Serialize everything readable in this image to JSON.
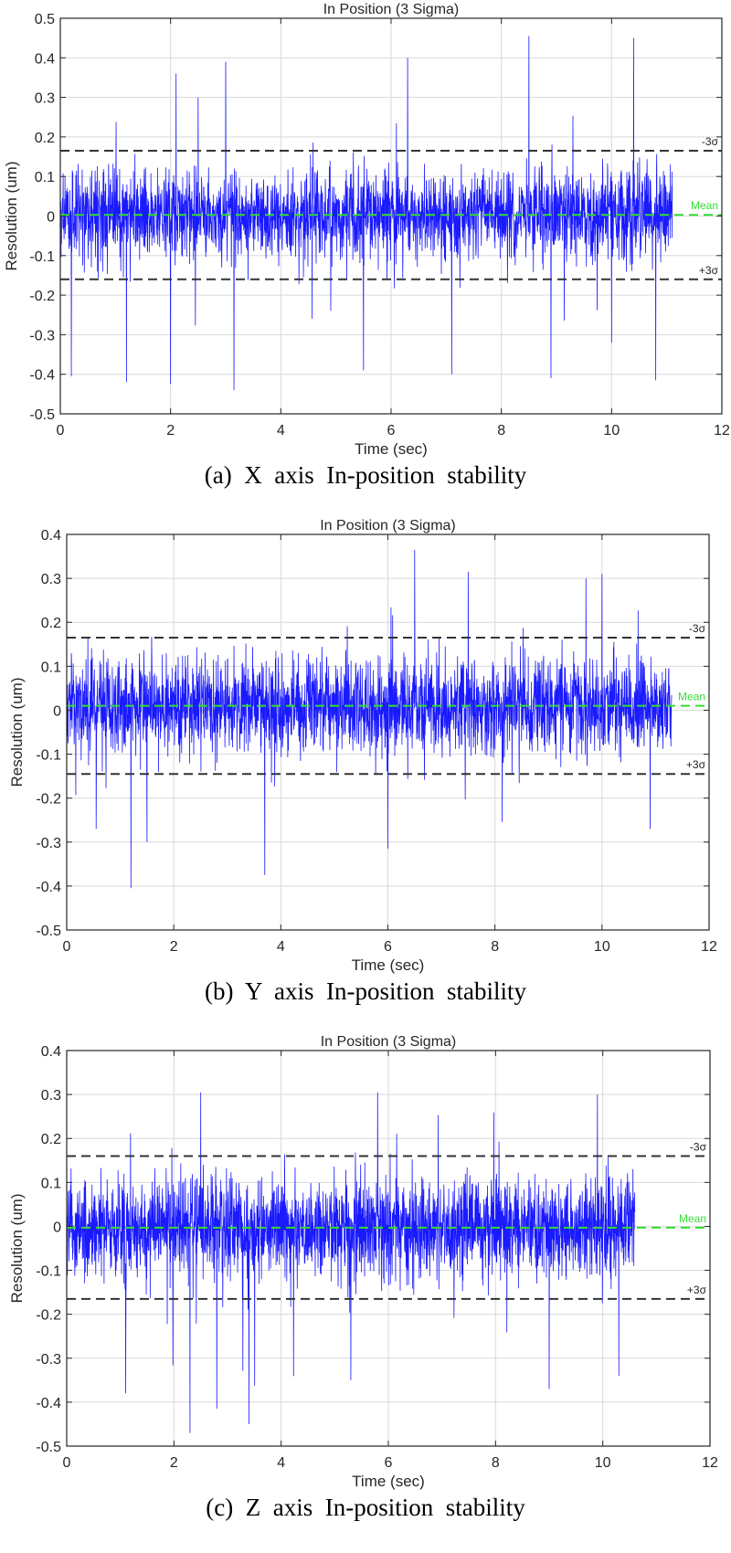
{
  "figure": {
    "colors": {
      "signal": "#1a1aff",
      "mean": "#33dd33",
      "sigma": "#333333",
      "grid": "#d9d9d9",
      "axis": "#262626"
    }
  },
  "chart_data": [
    {
      "type": "line",
      "title": "In Position (3 Sigma)",
      "xlabel": "Time (sec)",
      "ylabel": "Resolution (um)",
      "caption": "(a)  X  axis  In-position  stability",
      "xlim": [
        0,
        12
      ],
      "ylim": [
        -0.5,
        0.5
      ],
      "xticks": [
        0,
        2,
        4,
        6,
        8,
        10,
        12
      ],
      "yticks": [
        -0.5,
        -0.4,
        -0.3,
        -0.2,
        -0.1,
        0,
        0.1,
        0.2,
        0.3,
        0.4,
        0.5
      ],
      "grid": true,
      "signal_end": 11.1,
      "noise_sigma": 0.055,
      "reference_lines": [
        {
          "label": "-3σ",
          "y": 0.165,
          "style": "dashed"
        },
        {
          "label": "Mean",
          "y": 0.003,
          "style": "dashed"
        },
        {
          "label": "+3σ",
          "y": -0.16,
          "style": "dashed"
        }
      ],
      "peaks": [
        {
          "x": 0.2,
          "y": -0.405
        },
        {
          "x": 1.2,
          "y": -0.42
        },
        {
          "x": 2.0,
          "y": -0.425
        },
        {
          "x": 2.1,
          "y": 0.36
        },
        {
          "x": 2.5,
          "y": 0.3
        },
        {
          "x": 3.0,
          "y": 0.39
        },
        {
          "x": 3.15,
          "y": -0.44
        },
        {
          "x": 5.5,
          "y": -0.39
        },
        {
          "x": 6.3,
          "y": 0.4
        },
        {
          "x": 7.1,
          "y": -0.4
        },
        {
          "x": 8.5,
          "y": 0.455
        },
        {
          "x": 8.9,
          "y": -0.41
        },
        {
          "x": 10.0,
          "y": -0.32
        },
        {
          "x": 10.4,
          "y": 0.45
        },
        {
          "x": 10.8,
          "y": -0.415
        }
      ]
    },
    {
      "type": "line",
      "title": "In Position (3 Sigma)",
      "xlabel": "Time (sec)",
      "ylabel": "Resolution (um)",
      "caption": "(b)  Y  axis  In-position  stability",
      "xlim": [
        0,
        12
      ],
      "ylim": [
        -0.5,
        0.4
      ],
      "xticks": [
        0,
        2,
        4,
        6,
        8,
        10,
        12
      ],
      "yticks": [
        -0.5,
        -0.4,
        -0.3,
        -0.2,
        -0.1,
        0,
        0.1,
        0.2,
        0.3,
        0.4
      ],
      "grid": true,
      "signal_end": 11.3,
      "noise_sigma": 0.052,
      "reference_lines": [
        {
          "label": "-3σ",
          "y": 0.165,
          "style": "dashed"
        },
        {
          "label": "Mean",
          "y": 0.01,
          "style": "dashed"
        },
        {
          "label": "+3σ",
          "y": -0.145,
          "style": "dashed"
        }
      ],
      "peaks": [
        {
          "x": 0.55,
          "y": -0.27
        },
        {
          "x": 1.2,
          "y": -0.405
        },
        {
          "x": 1.5,
          "y": -0.3
        },
        {
          "x": 3.7,
          "y": -0.375
        },
        {
          "x": 6.0,
          "y": -0.315
        },
        {
          "x": 6.5,
          "y": 0.365
        },
        {
          "x": 7.5,
          "y": 0.315
        },
        {
          "x": 9.7,
          "y": 0.3
        },
        {
          "x": 10.0,
          "y": 0.31
        },
        {
          "x": 10.9,
          "y": -0.27
        }
      ]
    },
    {
      "type": "line",
      "title": "In Position (3 Sigma)",
      "xlabel": "Time (sec)",
      "ylabel": "Resolution (um)",
      "caption": "(c)  Z  axis  In-position  stability",
      "xlim": [
        0,
        12
      ],
      "ylim": [
        -0.5,
        0.4
      ],
      "xticks": [
        0,
        2,
        4,
        6,
        8,
        10,
        12
      ],
      "yticks": [
        -0.5,
        -0.4,
        -0.3,
        -0.2,
        -0.1,
        0,
        0.1,
        0.2,
        0.3,
        0.4
      ],
      "grid": true,
      "signal_end": 10.6,
      "noise_sigma": 0.055,
      "reference_lines": [
        {
          "label": "-3σ",
          "y": 0.16,
          "style": "dashed"
        },
        {
          "label": "Mean",
          "y": -0.003,
          "style": "dashed"
        },
        {
          "label": "+3σ",
          "y": -0.165,
          "style": "dashed"
        }
      ],
      "peaks": [
        {
          "x": 1.1,
          "y": -0.38
        },
        {
          "x": 2.3,
          "y": -0.47
        },
        {
          "x": 2.5,
          "y": 0.305
        },
        {
          "x": 2.8,
          "y": -0.415
        },
        {
          "x": 3.4,
          "y": -0.45
        },
        {
          "x": 5.3,
          "y": -0.35
        },
        {
          "x": 5.8,
          "y": 0.305
        },
        {
          "x": 9.0,
          "y": -0.37
        },
        {
          "x": 9.9,
          "y": 0.3
        },
        {
          "x": 10.3,
          "y": -0.34
        }
      ]
    }
  ]
}
